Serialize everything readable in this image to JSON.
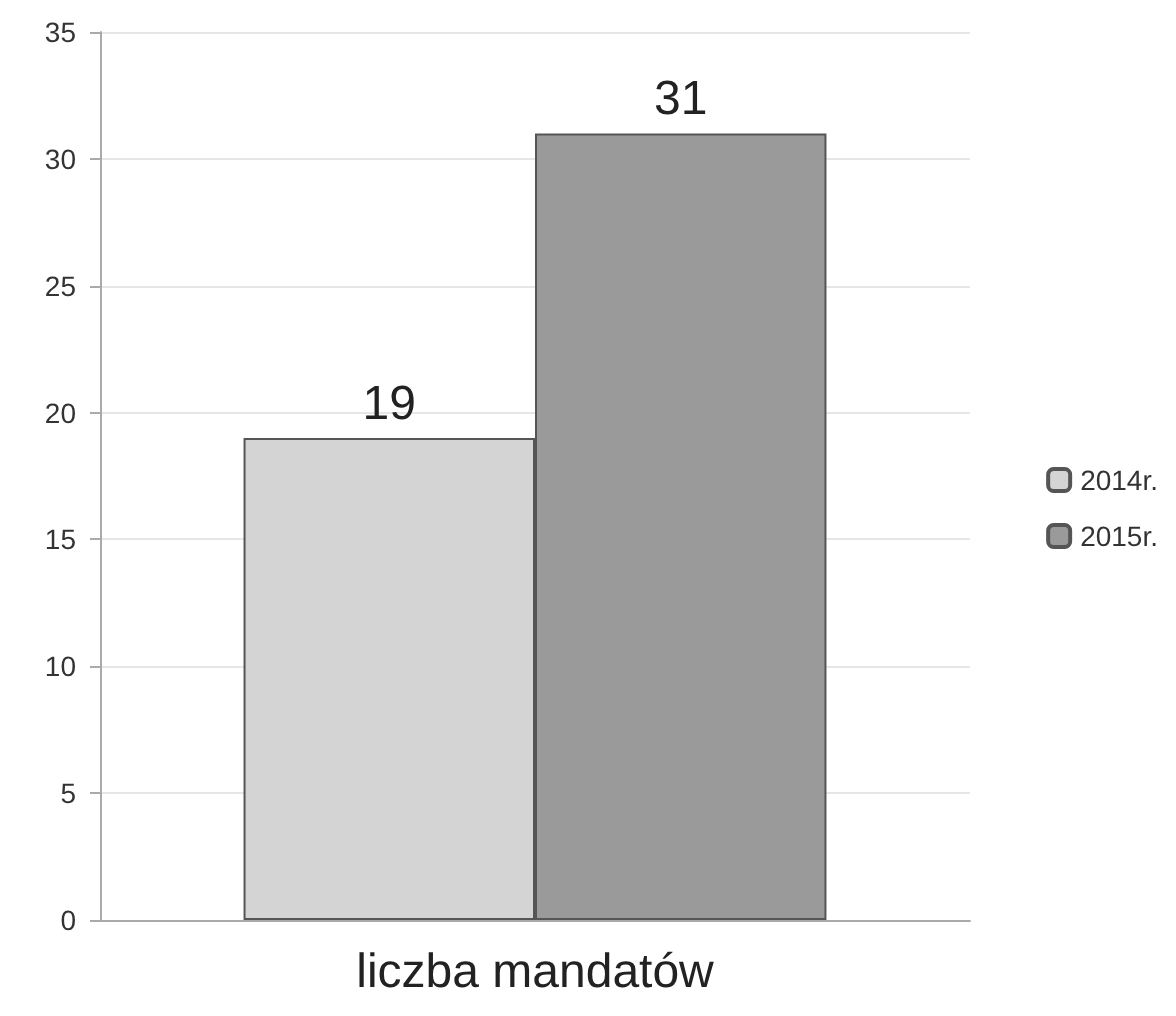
{
  "chart_data": {
    "type": "bar",
    "categories": [
      "liczba mandatów"
    ],
    "series": [
      {
        "name": "2014r.",
        "color": "#d4d4d4",
        "values": [
          19
        ]
      },
      {
        "name": "2015r.",
        "color": "#9a9a9a",
        "values": [
          31
        ]
      }
    ],
    "ylim": [
      0,
      35
    ],
    "yticks": [
      0,
      5,
      10,
      15,
      20,
      25,
      30,
      35
    ],
    "grid": "y",
    "legend": "right",
    "data_labels": true
  }
}
